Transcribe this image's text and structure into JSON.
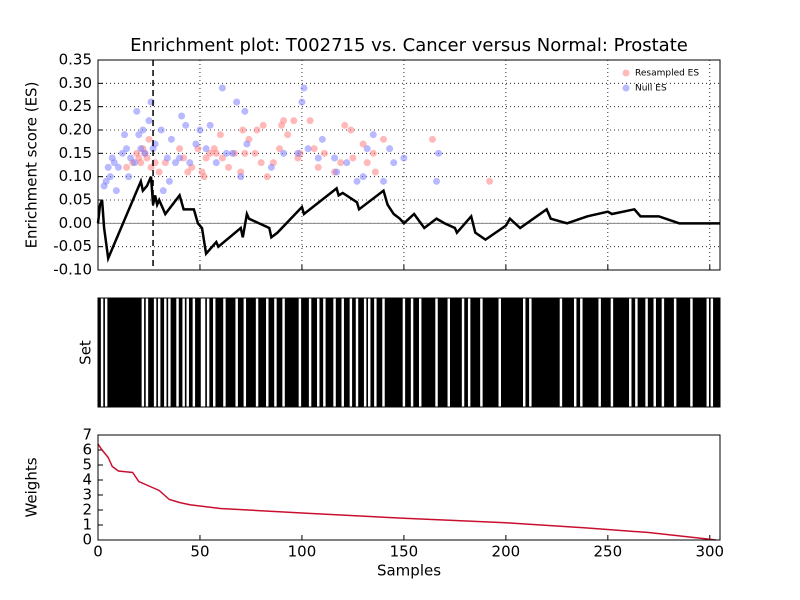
{
  "chart_data": [
    {
      "type": "line",
      "title": "Enrichment plot: T002715 vs. Cancer versus Normal: Prostate",
      "ylabel": "Enrichment score (ES)",
      "xlim": [
        0,
        305
      ],
      "xticks": [
        0,
        50,
        100,
        150,
        200,
        250,
        300
      ],
      "ylim": [
        -0.1,
        0.35
      ],
      "yticks": [
        {
          "value": -0.1,
          "label": "-0.10"
        },
        -0.05,
        {
          "value": 0.0,
          "label": "0.00"
        },
        0.05,
        {
          "value": 0.1,
          "label": "0.10"
        },
        0.15,
        {
          "value": 0.2,
          "label": "0.20"
        },
        0.25,
        {
          "value": 0.3,
          "label": "0.30"
        },
        0.35
      ],
      "grid": true,
      "legend": "upper right",
      "marker_x": 27,
      "es_line": {
        "color": "#000000",
        "x": [
          0,
          1,
          2,
          3,
          5,
          21,
          22,
          24,
          26,
          27,
          28,
          29,
          30,
          33,
          40,
          42,
          47,
          49,
          51,
          53,
          58,
          59,
          70,
          71,
          73,
          74,
          84,
          85,
          88,
          100,
          101,
          117,
          118,
          120,
          127,
          128,
          140,
          142,
          145,
          148,
          150,
          155,
          160,
          166,
          170,
          175,
          176,
          183,
          185,
          190,
          200,
          202,
          207,
          220,
          222,
          230,
          240,
          250,
          252,
          263,
          266,
          275,
          285,
          300,
          305
        ],
        "values": [
          0,
          0.04,
          0.05,
          -0.01,
          -0.075,
          0.09,
          0.07,
          0.08,
          0.1,
          0.04,
          0.06,
          0.04,
          0.05,
          0.02,
          0.06,
          0.03,
          0.03,
          0.0,
          -0.01,
          -0.065,
          -0.04,
          -0.05,
          -0.01,
          -0.03,
          0.02,
          0.01,
          -0.01,
          -0.03,
          -0.02,
          0.035,
          0.02,
          0.075,
          0.06,
          0.065,
          0.045,
          0.03,
          0.07,
          0.04,
          0.02,
          0.01,
          0.0,
          0.02,
          -0.01,
          0.01,
          0.0,
          -0.01,
          -0.02,
          0.015,
          -0.02,
          -0.035,
          -0.005,
          0.01,
          -0.01,
          0.03,
          0.01,
          0.0,
          0.015,
          0.025,
          0.02,
          0.03,
          0.015,
          0.015,
          0.0,
          0.0,
          0.0
        ]
      },
      "series": [
        {
          "name": "Resampled ES",
          "color": "#ff7f7f",
          "x": [
            14,
            17,
            19,
            20,
            21,
            22,
            23,
            24,
            25,
            26,
            28,
            30,
            33,
            40,
            42,
            44,
            46,
            49,
            51,
            52,
            53,
            55,
            57,
            58,
            60,
            61,
            64,
            67,
            70,
            71,
            72,
            74,
            77,
            78,
            80,
            81,
            83,
            86,
            89,
            90,
            91,
            93,
            96,
            98,
            99,
            104,
            106,
            108,
            111,
            116,
            119,
            121,
            124,
            125,
            130,
            132,
            135,
            136,
            140,
            164,
            192
          ],
          "values": [
            0.12,
            0.13,
            0.15,
            0.14,
            0.13,
            0.16,
            0.15,
            0.14,
            0.18,
            0.12,
            0.13,
            0.11,
            0.13,
            0.16,
            0.14,
            0.11,
            0.12,
            0.16,
            0.11,
            0.1,
            0.14,
            0.15,
            0.16,
            0.15,
            0.19,
            0.14,
            0.12,
            0.15,
            0.11,
            0.2,
            0.15,
            0.18,
            0.15,
            0.2,
            0.13,
            0.21,
            0.1,
            0.13,
            0.16,
            0.21,
            0.22,
            0.19,
            0.22,
            0.14,
            0.15,
            0.22,
            0.16,
            0.12,
            0.15,
            0.11,
            0.13,
            0.21,
            0.2,
            0.14,
            0.17,
            0.13,
            0.15,
            0.11,
            0.18,
            0.18,
            0.09
          ]
        },
        {
          "name": "Null ES",
          "color": "#7f7fff",
          "x": [
            3,
            4,
            5,
            6,
            7,
            8,
            9,
            10,
            12,
            13,
            14,
            15,
            16,
            18,
            19,
            20,
            21,
            22,
            23,
            25,
            26,
            27,
            28,
            31,
            32,
            34,
            35,
            36,
            38,
            40,
            41,
            43,
            45,
            48,
            50,
            53,
            55,
            58,
            61,
            63,
            66,
            68,
            70,
            72,
            73,
            85,
            91,
            98,
            100,
            101,
            103,
            108,
            110,
            116,
            117,
            122,
            127,
            130,
            132,
            135,
            140,
            143,
            145,
            150,
            166,
            167
          ],
          "values": [
            0.08,
            0.09,
            0.12,
            0.1,
            0.14,
            0.13,
            0.07,
            0.12,
            0.15,
            0.19,
            0.16,
            0.1,
            0.14,
            0.13,
            0.24,
            0.19,
            0.16,
            0.2,
            0.15,
            0.22,
            0.26,
            0.16,
            0.17,
            0.2,
            0.07,
            0.14,
            0.09,
            0.18,
            0.13,
            0.14,
            0.23,
            0.21,
            0.13,
            0.17,
            0.2,
            0.16,
            0.21,
            0.13,
            0.29,
            0.15,
            0.15,
            0.26,
            0.1,
            0.24,
            0.17,
            0.12,
            0.15,
            0.15,
            0.26,
            0.29,
            0.16,
            0.14,
            0.18,
            0.14,
            0.11,
            0.13,
            0.09,
            0.1,
            0.16,
            0.19,
            0.09,
            0.16,
            0.13,
            0.14,
            0.09,
            0.15
          ]
        }
      ]
    },
    {
      "type": "barcode",
      "ylabel": "Set",
      "xlim": [
        0,
        305
      ],
      "color": "#000000",
      "gaps": [
        2,
        4,
        22,
        24,
        28,
        30,
        33,
        35,
        39,
        42,
        44,
        47,
        51,
        52,
        54,
        57,
        62,
        68,
        72,
        78,
        83,
        87,
        91,
        99,
        104,
        108,
        111,
        116,
        120,
        124,
        127,
        131,
        133,
        136,
        140,
        150,
        154,
        158,
        166,
        172,
        179,
        182,
        188,
        197,
        209,
        212,
        227,
        234,
        237,
        246,
        252,
        261,
        264,
        269,
        273,
        277,
        283,
        291,
        299,
        301
      ]
    },
    {
      "type": "line",
      "ylabel": "Weights",
      "xlabel": "Samples",
      "xlim": [
        0,
        305
      ],
      "xticks": [
        0,
        50,
        100,
        150,
        200,
        250,
        300
      ],
      "ylim": [
        0,
        7
      ],
      "yticks": [
        0,
        1,
        2,
        3,
        4,
        5,
        6,
        7
      ],
      "color": "#c8102e",
      "x": [
        0,
        2,
        5,
        7,
        10,
        17,
        20,
        25,
        30,
        35,
        40,
        45,
        60,
        100,
        150,
        200,
        240,
        270,
        290,
        300,
        303
      ],
      "values": [
        6.4,
        6.0,
        5.5,
        4.9,
        4.6,
        4.5,
        3.9,
        3.6,
        3.3,
        2.7,
        2.5,
        2.35,
        2.1,
        1.8,
        1.45,
        1.15,
        0.8,
        0.5,
        0.2,
        0.05,
        0
      ]
    }
  ]
}
